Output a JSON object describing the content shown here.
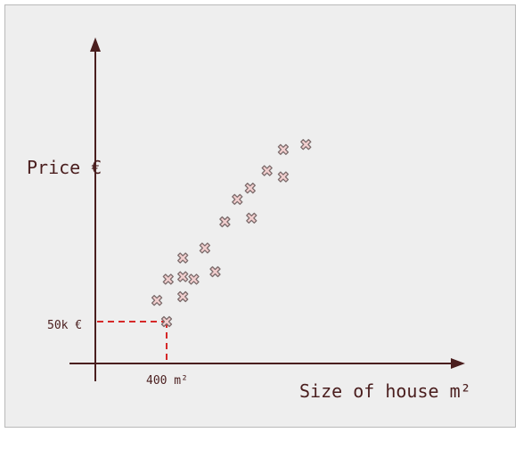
{
  "chart_data": {
    "type": "scatter",
    "title": "",
    "xlabel": "Size of house m²",
    "ylabel": "Price €",
    "annotations": {
      "x_reference": {
        "label": "400 m²"
      },
      "y_reference": {
        "label": "50k €"
      }
    },
    "marker": "cross-x",
    "colors": {
      "axis": "#4a1e1e",
      "marker_fill": "#f2cfcf",
      "marker_stroke": "#7a6a6a",
      "reference_line": "#d62828"
    },
    "grid": false,
    "points": [
      {
        "x": 400,
        "y": 50
      },
      {
        "x": 370,
        "y": 67
      },
      {
        "x": 405,
        "y": 84
      },
      {
        "x": 450,
        "y": 70
      },
      {
        "x": 450,
        "y": 86
      },
      {
        "x": 450,
        "y": 101
      },
      {
        "x": 484,
        "y": 84
      },
      {
        "x": 518,
        "y": 109
      },
      {
        "x": 550,
        "y": 90
      },
      {
        "x": 580,
        "y": 130
      },
      {
        "x": 618,
        "y": 148
      },
      {
        "x": 662,
        "y": 133
      },
      {
        "x": 658,
        "y": 157
      },
      {
        "x": 710,
        "y": 171
      },
      {
        "x": 760,
        "y": 166
      },
      {
        "x": 760,
        "y": 188
      },
      {
        "x": 830,
        "y": 192
      }
    ]
  }
}
